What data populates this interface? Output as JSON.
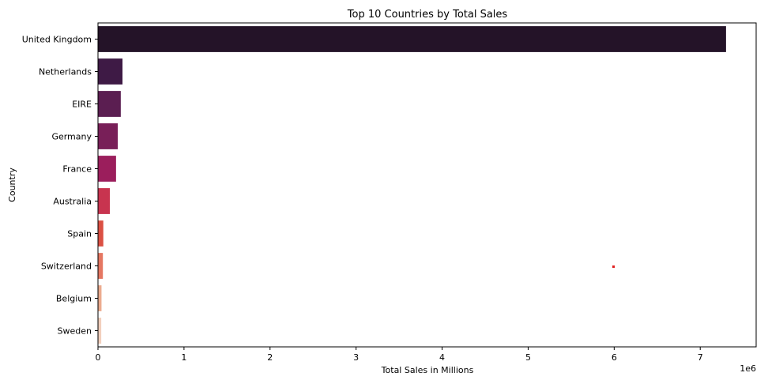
{
  "chart_data": {
    "type": "bar",
    "orientation": "horizontal",
    "title": "Top 10 Countries by Total Sales",
    "xlabel": "Total Sales in Millions",
    "ylabel": "Country",
    "offset_label": "1e6",
    "categories": [
      "United Kingdom",
      "Netherlands",
      "EIRE",
      "Germany",
      "France",
      "Australia",
      "Spain",
      "Switzerland",
      "Belgium",
      "Sweden"
    ],
    "values": [
      7300000,
      285000,
      265000,
      230000,
      210000,
      138000,
      62000,
      57000,
      41000,
      38000
    ],
    "colors": [
      "#241328",
      "#3e1a45",
      "#5b1e51",
      "#781f58",
      "#9b1e5c",
      "#c8344f",
      "#db5043",
      "#e57762",
      "#ecab8e",
      "#f2cfbc"
    ],
    "xlim": [
      0,
      7650000
    ],
    "xticks": [
      0,
      1000000,
      2000000,
      3000000,
      4000000,
      5000000,
      6000000,
      7000000
    ],
    "xtick_labels": [
      "0",
      "1",
      "2",
      "3",
      "4",
      "5",
      "6",
      "7"
    ],
    "grid": false,
    "legend": "none"
  }
}
